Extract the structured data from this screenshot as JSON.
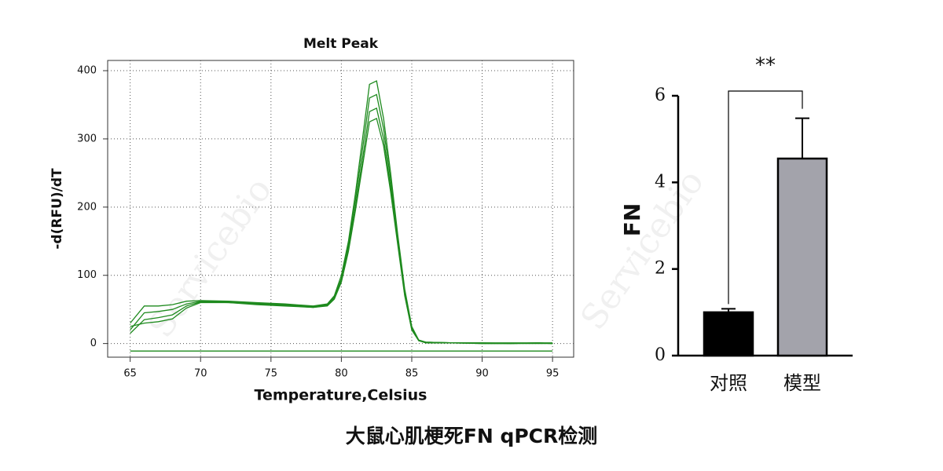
{
  "chart_data": [
    {
      "type": "line",
      "title": "Melt Peak",
      "x_label": "Temperature,Celsius",
      "y_label": "-d(RFU)/dT",
      "x": [
        65,
        66,
        67,
        68,
        69,
        70,
        72,
        74,
        76,
        78,
        79,
        79.5,
        80,
        80.5,
        81,
        81.5,
        82,
        82.5,
        83,
        83.5,
        84,
        84.5,
        85,
        85.5,
        86,
        88,
        90,
        92,
        94,
        95
      ],
      "series": [
        {
          "color": "#1e8a1e",
          "values": [
            30,
            55,
            55,
            57,
            62,
            63,
            62,
            60,
            58,
            55,
            58,
            70,
            100,
            150,
            220,
            300,
            380,
            385,
            330,
            250,
            160,
            80,
            25,
            5,
            2,
            1,
            1,
            1,
            1,
            1
          ]
        },
        {
          "color": "#1e8a1e",
          "values": [
            20,
            45,
            47,
            50,
            58,
            62,
            61,
            59,
            57,
            54,
            57,
            68,
            95,
            145,
            210,
            285,
            360,
            365,
            315,
            240,
            155,
            75,
            22,
            5,
            2,
            1,
            1,
            0,
            1,
            0
          ]
        },
        {
          "color": "#1e8a1e",
          "values": [
            15,
            35,
            38,
            42,
            55,
            61,
            60,
            58,
            56,
            53,
            56,
            66,
            92,
            140,
            200,
            270,
            340,
            345,
            300,
            230,
            150,
            72,
            20,
            4,
            2,
            1,
            0,
            0,
            0,
            0
          ]
        },
        {
          "color": "#1e8a1e",
          "values": [
            25,
            30,
            32,
            36,
            52,
            60,
            60,
            57,
            55,
            53,
            55,
            65,
            90,
            135,
            195,
            260,
            325,
            330,
            290,
            222,
            145,
            70,
            20,
            4,
            1,
            1,
            0,
            0,
            1,
            0
          ]
        },
        {
          "color": "#1e8a1e",
          "values": [
            -11,
            -11,
            -11,
            -11,
            -11,
            -11,
            -11,
            -11,
            -11,
            -11,
            -11,
            -11,
            -11,
            -11,
            -11,
            -11,
            -11,
            -11,
            -11,
            -11,
            -11,
            -11,
            -11,
            -11,
            -11,
            -11,
            -11,
            -11,
            -11,
            -11
          ]
        }
      ],
      "xlim": [
        63.4,
        96.5
      ],
      "ylim": [
        -20,
        415
      ],
      "xticks": [
        65,
        70,
        75,
        80,
        85,
        90,
        95
      ],
      "yticks": [
        0,
        100,
        200,
        300,
        400
      ],
      "grid": true
    },
    {
      "type": "bar",
      "y_label": "FN",
      "categories": [
        "对照",
        "模型"
      ],
      "values": [
        1.0,
        4.55
      ],
      "errors": [
        0.08,
        0.93
      ],
      "colors": [
        "#000000",
        "#a3a3ab"
      ],
      "ylim": [
        0,
        6
      ],
      "yticks": [
        0,
        2,
        4,
        6
      ],
      "annotation": "**"
    }
  ],
  "caption": "大鼠心肌梗死FN qPCR检测",
  "watermark": "Servicebio"
}
